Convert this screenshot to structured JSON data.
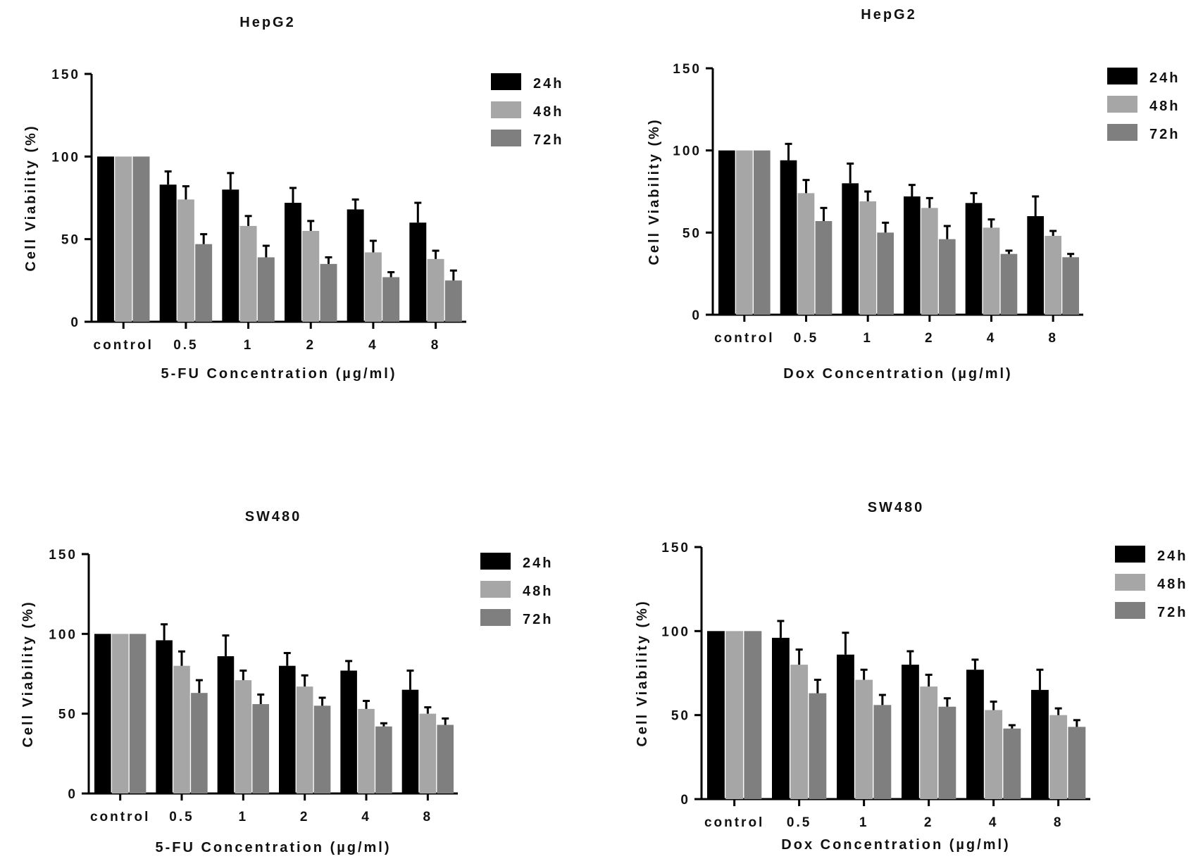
{
  "chart_data": [
    {
      "type": "bar",
      "title": "HepG2",
      "xlabel": "5-FU Concentration (µg/ml)",
      "ylabel": "Cell Viability (%)",
      "categories": [
        "control",
        "0.5",
        "1",
        "2",
        "4",
        "8"
      ],
      "ylim": [
        0,
        150
      ],
      "yticks": [
        0,
        50,
        100,
        150
      ],
      "legend_position": "right",
      "series": [
        {
          "name": "24h",
          "color": "#000000",
          "values": [
            100,
            83,
            80,
            72,
            68,
            60
          ],
          "errors": [
            0,
            8,
            10,
            9,
            6,
            12
          ]
        },
        {
          "name": "48h",
          "color": "#a6a6a6",
          "values": [
            100,
            74,
            58,
            55,
            42,
            38
          ],
          "errors": [
            0,
            8,
            6,
            6,
            7,
            5
          ]
        },
        {
          "name": "72h",
          "color": "#7f7f7f",
          "values": [
            100,
            47,
            39,
            35,
            27,
            25
          ],
          "errors": [
            0,
            6,
            7,
            4,
            3,
            6
          ]
        }
      ]
    },
    {
      "type": "bar",
      "title": "HepG2",
      "xlabel": "Dox Concentration (µg/ml)",
      "ylabel": "Cell Viability (%)",
      "categories": [
        "control",
        "0.5",
        "1",
        "2",
        "4",
        "8"
      ],
      "ylim": [
        0,
        150
      ],
      "yticks": [
        0,
        50,
        100,
        150
      ],
      "legend_position": "right",
      "series": [
        {
          "name": "24h",
          "color": "#000000",
          "values": [
            100,
            94,
            80,
            72,
            68,
            60
          ],
          "errors": [
            0,
            10,
            12,
            7,
            6,
            12
          ]
        },
        {
          "name": "48h",
          "color": "#a6a6a6",
          "values": [
            100,
            74,
            69,
            65,
            53,
            48
          ],
          "errors": [
            0,
            8,
            6,
            6,
            5,
            3
          ]
        },
        {
          "name": "72h",
          "color": "#7f7f7f",
          "values": [
            100,
            57,
            50,
            46,
            37,
            35
          ],
          "errors": [
            0,
            8,
            6,
            8,
            2,
            2
          ]
        }
      ]
    },
    {
      "type": "bar",
      "title": "SW480",
      "xlabel": "5-FU Concentration (µg/ml)",
      "ylabel": "Cell Viability (%)",
      "categories": [
        "control",
        "0.5",
        "1",
        "2",
        "4",
        "8"
      ],
      "ylim": [
        0,
        150
      ],
      "yticks": [
        0,
        50,
        100,
        150
      ],
      "legend_position": "right",
      "series": [
        {
          "name": "24h",
          "color": "#000000",
          "values": [
            100,
            96,
            86,
            80,
            77,
            65
          ],
          "errors": [
            0,
            10,
            13,
            8,
            6,
            12
          ]
        },
        {
          "name": "48h",
          "color": "#a6a6a6",
          "values": [
            100,
            80,
            71,
            67,
            53,
            50
          ],
          "errors": [
            0,
            9,
            6,
            7,
            5,
            4
          ]
        },
        {
          "name": "72h",
          "color": "#7f7f7f",
          "values": [
            100,
            63,
            56,
            55,
            42,
            43
          ],
          "errors": [
            0,
            8,
            6,
            5,
            2,
            4
          ]
        }
      ]
    },
    {
      "type": "bar",
      "title": "SW480",
      "xlabel": "Dox Concentration (µg/ml)",
      "ylabel": "Cell Viability (%)",
      "categories": [
        "control",
        "0.5",
        "1",
        "2",
        "4",
        "8"
      ],
      "ylim": [
        0,
        150
      ],
      "yticks": [
        0,
        50,
        100,
        150
      ],
      "legend_position": "right",
      "series": [
        {
          "name": "24h",
          "color": "#000000",
          "values": [
            100,
            96,
            86,
            80,
            77,
            65
          ],
          "errors": [
            0,
            10,
            13,
            8,
            6,
            12
          ]
        },
        {
          "name": "48h",
          "color": "#a6a6a6",
          "values": [
            100,
            80,
            71,
            67,
            53,
            50
          ],
          "errors": [
            0,
            9,
            6,
            7,
            5,
            4
          ]
        },
        {
          "name": "72h",
          "color": "#7f7f7f",
          "values": [
            100,
            63,
            56,
            55,
            42,
            43
          ],
          "errors": [
            0,
            8,
            6,
            5,
            2,
            4
          ]
        }
      ]
    }
  ]
}
